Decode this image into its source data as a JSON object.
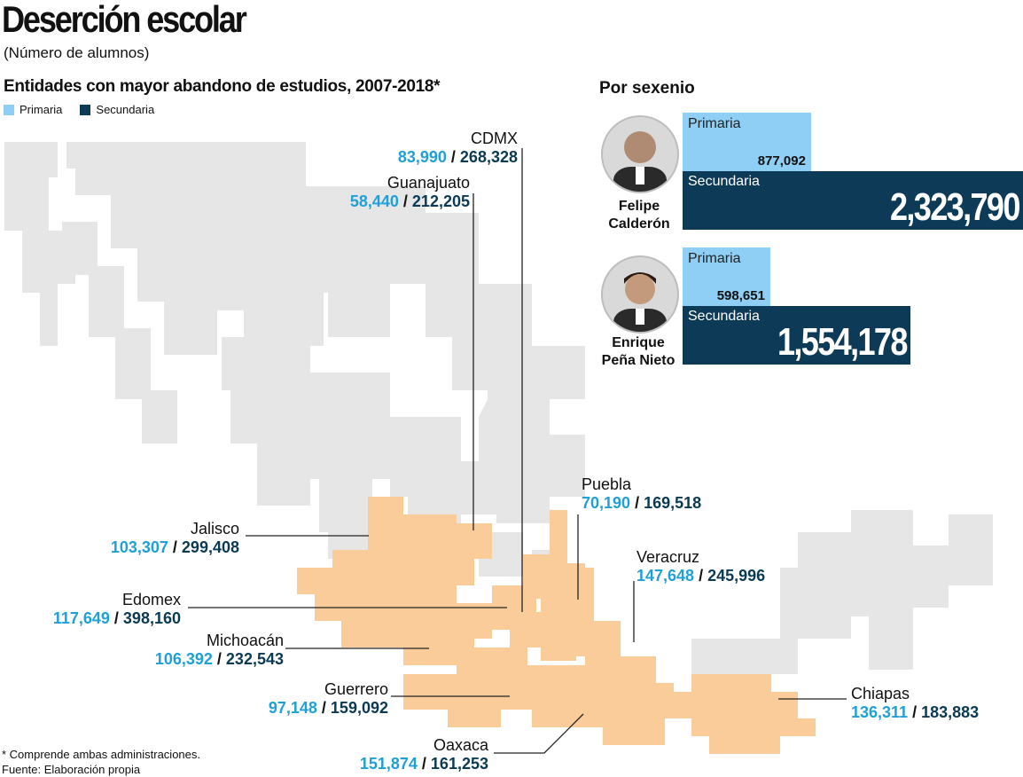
{
  "title": "Deserción escolar",
  "subtitle": "(Número de alumnos)",
  "map_heading": "Entidades con mayor abandono de estudios, 2007-2018*",
  "legend": {
    "primaria": "Primaria",
    "secundaria": "Secundaria"
  },
  "colors": {
    "primaria": "#8fcff5",
    "secundaria": "#0d3b57",
    "primaria_text": "#1fa0d8",
    "highlight_state": "#f9cc9a",
    "other_state": "#e6e6e6"
  },
  "states": [
    {
      "name": "CDMX",
      "primaria": "83,990",
      "secundaria": "268,328"
    },
    {
      "name": "Guanajuato",
      "primaria": "58,440",
      "secundaria": "212,205"
    },
    {
      "name": "Jalisco",
      "primaria": "103,307",
      "secundaria": "299,408"
    },
    {
      "name": "Edomex",
      "primaria": "117,649",
      "secundaria": "398,160"
    },
    {
      "name": "Michoacán",
      "primaria": "106,392",
      "secundaria": "232,543"
    },
    {
      "name": "Guerrero",
      "primaria": "97,148",
      "secundaria": "159,092"
    },
    {
      "name": "Oaxaca",
      "primaria": "151,874",
      "secundaria": "161,253"
    },
    {
      "name": "Puebla",
      "primaria": "70,190",
      "secundaria": "169,518"
    },
    {
      "name": "Veracruz",
      "primaria": "147,648",
      "secundaria": "245,996"
    },
    {
      "name": "Chiapas",
      "primaria": "136,311",
      "secundaria": "183,883"
    }
  ],
  "footnote": "* Comprende ambas administraciones.",
  "source": "Fuente: Elaboración propia",
  "sexenio_heading": "Por sexenio",
  "chart_data": {
    "type": "bar",
    "title": "Por sexenio",
    "categories": [
      "Felipe Calderón",
      "Enrique Peña Nieto"
    ],
    "series": [
      {
        "name": "Primaria",
        "values": [
          877092,
          598651
        ]
      },
      {
        "name": "Secundaria",
        "values": [
          2323790,
          1554178
        ]
      }
    ]
  },
  "presidents": [
    {
      "name_line1": "Felipe",
      "name_line2": "Calderón",
      "primaria_label": "Primaria",
      "primaria_value": "877,092",
      "secundaria_label": "Secundaria",
      "secundaria_value": "2,323,790"
    },
    {
      "name_line1": "Enrique",
      "name_line2": "Peña Nieto",
      "primaria_label": "Primaria",
      "primaria_value": "598,651",
      "secundaria_label": "Secundaria",
      "secundaria_value": "1,554,178"
    }
  ]
}
